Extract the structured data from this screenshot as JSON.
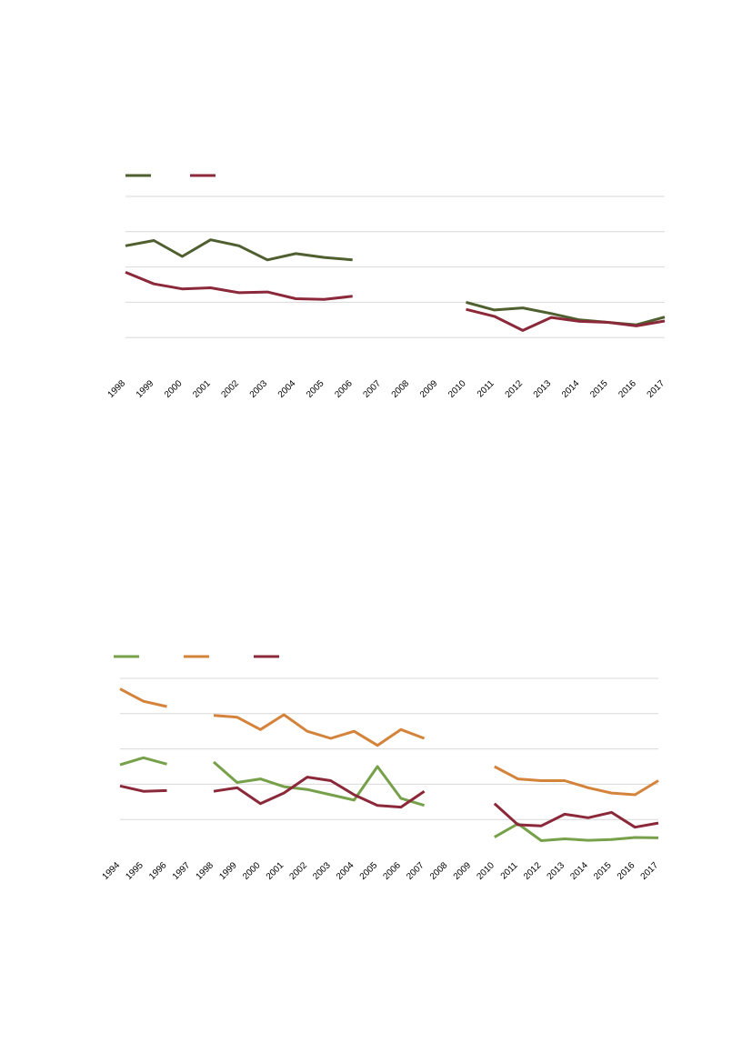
{
  "chart_data": [
    {
      "type": "line",
      "title": "",
      "xlabel": "",
      "ylabel": "",
      "grid": true,
      "legend": "top-left",
      "x": [
        "1998",
        "1999",
        "2000",
        "2001",
        "2002",
        "2003",
        "2004",
        "2005",
        "2006",
        "2007",
        "2008",
        "2009",
        "2010",
        "2011",
        "2012",
        "2013",
        "2014",
        "2015",
        "2016",
        "2017"
      ],
      "ylim": [
        0,
        5
      ],
      "series": [
        {
          "color": "#4f5f2f",
          "values": [
            3.6,
            3.75,
            3.3,
            3.77,
            3.6,
            3.2,
            3.38,
            3.27,
            3.2,
            null,
            null,
            null,
            2.0,
            1.78,
            1.84,
            1.68,
            1.5,
            1.43,
            1.36,
            1.58
          ]
        },
        {
          "color": "#8b2839",
          "values": [
            2.85,
            2.52,
            2.38,
            2.41,
            2.27,
            2.29,
            2.1,
            2.08,
            2.17,
            null,
            null,
            null,
            1.8,
            1.6,
            1.2,
            1.57,
            1.46,
            1.43,
            1.33,
            1.47
          ]
        }
      ]
    },
    {
      "type": "line",
      "title": "",
      "xlabel": "",
      "ylabel": "",
      "grid": true,
      "legend": "top-left",
      "x": [
        "1994",
        "1995",
        "1996",
        "1997",
        "1998",
        "1999",
        "2000",
        "2001",
        "2002",
        "2003",
        "2004",
        "2005",
        "2006",
        "2007",
        "2008",
        "2009",
        "2010",
        "2011",
        "2012",
        "2013",
        "2014",
        "2015",
        "2016",
        "2017"
      ],
      "ylim": [
        0,
        5
      ],
      "series": [
        {
          "color": "#76a04a",
          "values": [
            2.55,
            2.75,
            2.57,
            null,
            2.63,
            2.05,
            2.15,
            1.93,
            1.85,
            1.7,
            1.55,
            2.5,
            1.6,
            1.4,
            null,
            null,
            0.5,
            0.88,
            0.4,
            0.45,
            0.41,
            0.43,
            0.49,
            0.48
          ]
        },
        {
          "color": "#d4833b",
          "values": [
            4.7,
            4.35,
            4.2,
            null,
            3.95,
            3.9,
            3.55,
            3.97,
            3.5,
            3.3,
            3.5,
            3.1,
            3.55,
            3.3,
            null,
            null,
            2.5,
            2.15,
            2.1,
            2.1,
            1.9,
            1.75,
            1.7,
            2.1
          ]
        },
        {
          "color": "#8b2839",
          "values": [
            1.95,
            1.8,
            1.82,
            null,
            1.8,
            1.9,
            1.45,
            1.75,
            2.2,
            2.1,
            1.7,
            1.4,
            1.35,
            1.8,
            null,
            null,
            1.45,
            0.85,
            0.82,
            1.15,
            1.05,
            1.2,
            0.78,
            0.9
          ]
        }
      ]
    }
  ]
}
